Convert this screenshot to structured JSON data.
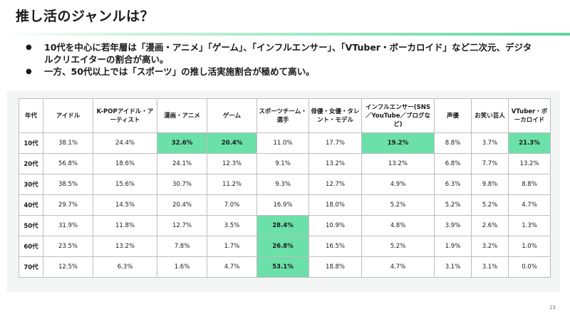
{
  "title": "推し活のジャンルは？",
  "bullets": [
    "10代を中心に若年層は「漫画・アニメ」「ゲーム」、「インフルエンサー」、「VTuber・ボーカロイド」など二次元、デジタルクリエイターの割合が高い。",
    "一方、50代以上では「スポーツ」の推し活実施割合が極めて高い。"
  ],
  "table": {
    "headers": [
      "年代",
      "アイドル",
      "K-POPアイドル・アーティスト",
      "漫画・アニメ",
      "ゲーム",
      "スポーツチーム・選手",
      "俳優・女優・タレント・モデル",
      "インフルエンサー(SNS／YouTube／ブログなど)",
      "声優",
      "お笑い芸人",
      "VTuber・ボーカロイド"
    ],
    "rows": [
      [
        "10代",
        "38.1%",
        "24.4%",
        "32.6%",
        "20.4%",
        "11.0%",
        "17.7%",
        "19.2%",
        "8.8%",
        "3.7%",
        "21.3%"
      ],
      [
        "20代",
        "56.8%",
        "18.6%",
        "24.1%",
        "12.3%",
        "9.1%",
        "13.2%",
        "13.2%",
        "6.8%",
        "7.7%",
        "13.2%"
      ],
      [
        "30代",
        "38.5%",
        "15.6%",
        "30.7%",
        "11.2%",
        "9.3%",
        "12.7%",
        "4.9%",
        "6.3%",
        "9.8%",
        "8.8%"
      ],
      [
        "40代",
        "29.7%",
        "14.5%",
        "20.4%",
        "7.0%",
        "16.9%",
        "18.0%",
        "5.2%",
        "5.2%",
        "5.2%",
        "4.7%"
      ],
      [
        "50代",
        "31.9%",
        "11.8%",
        "12.7%",
        "3.5%",
        "28.4%",
        "10.9%",
        "4.8%",
        "3.9%",
        "2.6%",
        "1.3%"
      ],
      [
        "60代",
        "23.5%",
        "13.2%",
        "7.8%",
        "1.7%",
        "26.8%",
        "16.5%",
        "5.2%",
        "1.9%",
        "3.2%",
        "1.0%"
      ],
      [
        "70代",
        "12.5%",
        "6.3%",
        "1.6%",
        "4.7%",
        "53.1%",
        "18.8%",
        "4.7%",
        "3.1%",
        "3.1%",
        "0.0%"
      ]
    ],
    "highlight_color": "#6be0a8"
  },
  "page_number": "23"
}
